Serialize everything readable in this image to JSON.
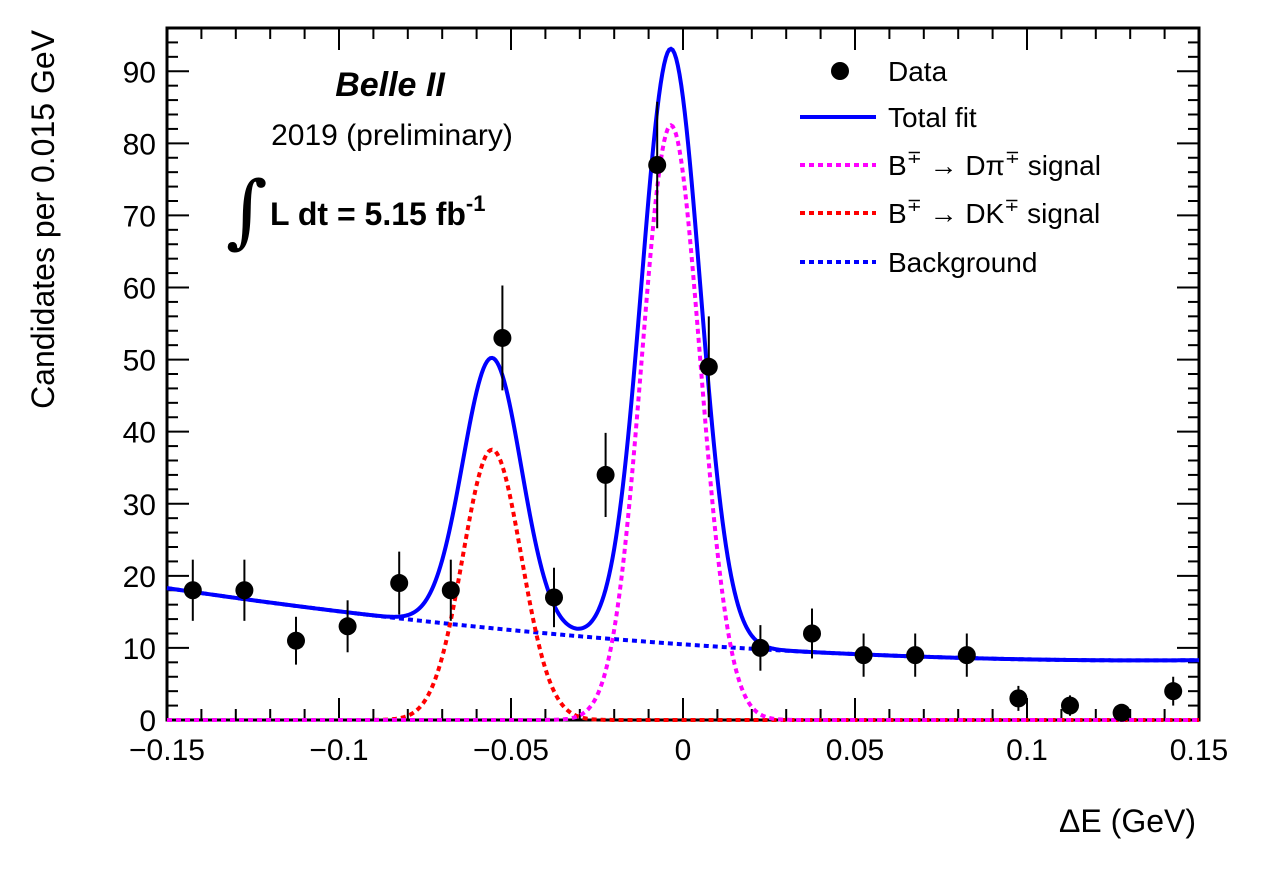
{
  "chart_data": {
    "type": "scatter",
    "xlabel": "ΔE (GeV)",
    "ylabel": "Candidates per 0.015 GeV",
    "xlim": [
      -0.15,
      0.15
    ],
    "ylim": [
      0,
      96
    ],
    "x_ticks": [
      {
        "value": -0.15,
        "label": "−0.15"
      },
      {
        "value": -0.1,
        "label": "−0.1"
      },
      {
        "value": -0.05,
        "label": "−0.05"
      },
      {
        "value": 0,
        "label": "0"
      },
      {
        "value": 0.05,
        "label": "0.05"
      },
      {
        "value": 0.1,
        "label": "0.1"
      },
      {
        "value": 0.15,
        "label": "0.15"
      }
    ],
    "y_ticks": [
      {
        "value": 0,
        "label": "0"
      },
      {
        "value": 10,
        "label": "10"
      },
      {
        "value": 20,
        "label": "20"
      },
      {
        "value": 30,
        "label": "30"
      },
      {
        "value": 40,
        "label": "40"
      },
      {
        "value": 50,
        "label": "50"
      },
      {
        "value": 60,
        "label": "60"
      },
      {
        "value": 70,
        "label": "70"
      },
      {
        "value": 80,
        "label": "80"
      },
      {
        "value": 90,
        "label": "90"
      }
    ],
    "data_points": {
      "name": "Data",
      "x": [
        -0.1425,
        -0.1275,
        -0.1125,
        -0.0975,
        -0.0825,
        -0.0675,
        -0.0525,
        -0.0375,
        -0.0225,
        -0.0075,
        0.0075,
        0.0225,
        0.0375,
        0.0525,
        0.0675,
        0.0825,
        0.0975,
        0.1125,
        0.1275,
        0.1425
      ],
      "y": [
        18,
        18,
        11,
        13,
        19,
        18,
        53,
        17,
        34,
        77,
        49,
        10,
        12,
        9,
        9,
        9,
        3,
        2,
        1,
        4
      ]
    },
    "model": {
      "background": {
        "a": 10.5,
        "b": -5.0,
        "c": 2.8
      },
      "dk_signal": {
        "amp": 37.5,
        "mean": -0.0555,
        "sigma": 0.0085
      },
      "dpi_signal": {
        "amp": 82.5,
        "mean": -0.0035,
        "sigma": 0.0085
      }
    },
    "series": [
      {
        "name": "Total fit",
        "color": "#0000ff",
        "style": "solid"
      },
      {
        "name": "B∓ → Dπ∓ signal",
        "color": "#ff00ff",
        "style": "dotted"
      },
      {
        "name": "B∓ → DK∓ signal",
        "color": "#ff0000",
        "style": "dotted"
      },
      {
        "name": "Background",
        "color": "#0000ff",
        "style": "dotted"
      }
    ],
    "legend": {
      "position": "top-right",
      "data_label": "Data",
      "total_label": "Total fit",
      "dpi_main": "B",
      "dpi_sup": "∓",
      "dpi_mid": " → Dπ",
      "dpi_sup2": "∓",
      "dpi_tail": " signal",
      "dk_main": "B",
      "dk_sup": "∓",
      "dk_mid": " → DK",
      "dk_sup2": "∓",
      "dk_tail": " signal",
      "bkg_label": "Background"
    },
    "annotations": {
      "experiment": "Belle II",
      "year": "2019 (preliminary)",
      "integral_symbol": "∫",
      "lumi_text": "L dt = 5.15 fb",
      "lumi_sup": "-1"
    }
  }
}
